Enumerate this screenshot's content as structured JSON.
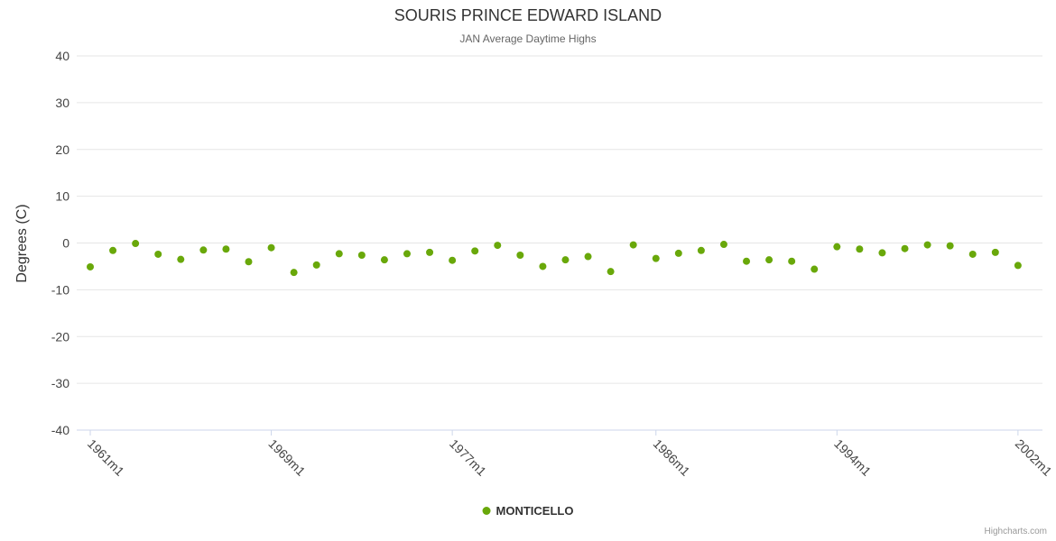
{
  "chart_data": {
    "type": "scatter",
    "title": "SOURIS PRINCE EDWARD ISLAND",
    "subtitle": "JAN Average Daytime Highs",
    "xlabel": "",
    "ylabel": "Degrees (C)",
    "ylim": [
      -40,
      40
    ],
    "y_tick_interval": 10,
    "grid": true,
    "legend_position": "bottom-center",
    "grid_color": "#e6e6e6",
    "axis_line_color": "#ccd6eb",
    "tick_label_color": "#444444",
    "x_tick_labels": [
      "1961m1",
      "1969m1",
      "1977m1",
      "1986m1",
      "1994m1",
      "2002m1"
    ],
    "x_tick_years": [
      1961,
      1969,
      1977,
      1986,
      1994,
      2002
    ],
    "series": [
      {
        "name": "MONTICELLO",
        "color": "#69a80a",
        "x": [
          1961,
          1962,
          1963,
          1964,
          1965,
          1966,
          1967,
          1968,
          1969,
          1970,
          1971,
          1972,
          1973,
          1974,
          1975,
          1976,
          1977,
          1978,
          1979,
          1980,
          1981,
          1982,
          1983,
          1984,
          1985,
          1986,
          1987,
          1988,
          1989,
          1990,
          1991,
          1992,
          1993,
          1994,
          1995,
          1996,
          1997,
          1998,
          1999,
          2000,
          2001,
          2002
        ],
        "values": [
          -5.1,
          -1.6,
          -0.1,
          -2.4,
          -3.5,
          -1.5,
          -1.3,
          -4.0,
          -1.0,
          -6.3,
          -4.7,
          -2.3,
          -2.6,
          -3.6,
          -2.3,
          -2.0,
          -3.7,
          -1.7,
          -0.5,
          -2.6,
          -5.0,
          -3.6,
          -2.9,
          -6.1,
          -0.4,
          -3.3,
          -2.2,
          -1.6,
          -0.3,
          -3.9,
          -3.6,
          -3.9,
          -5.6,
          -0.8,
          -1.3,
          -2.1,
          -1.2,
          -0.4,
          -0.6,
          -2.4,
          -2.0,
          -4.8
        ]
      }
    ]
  },
  "legend": {
    "label": "MONTICELLO"
  },
  "credits": {
    "label": "Highcharts.com"
  }
}
